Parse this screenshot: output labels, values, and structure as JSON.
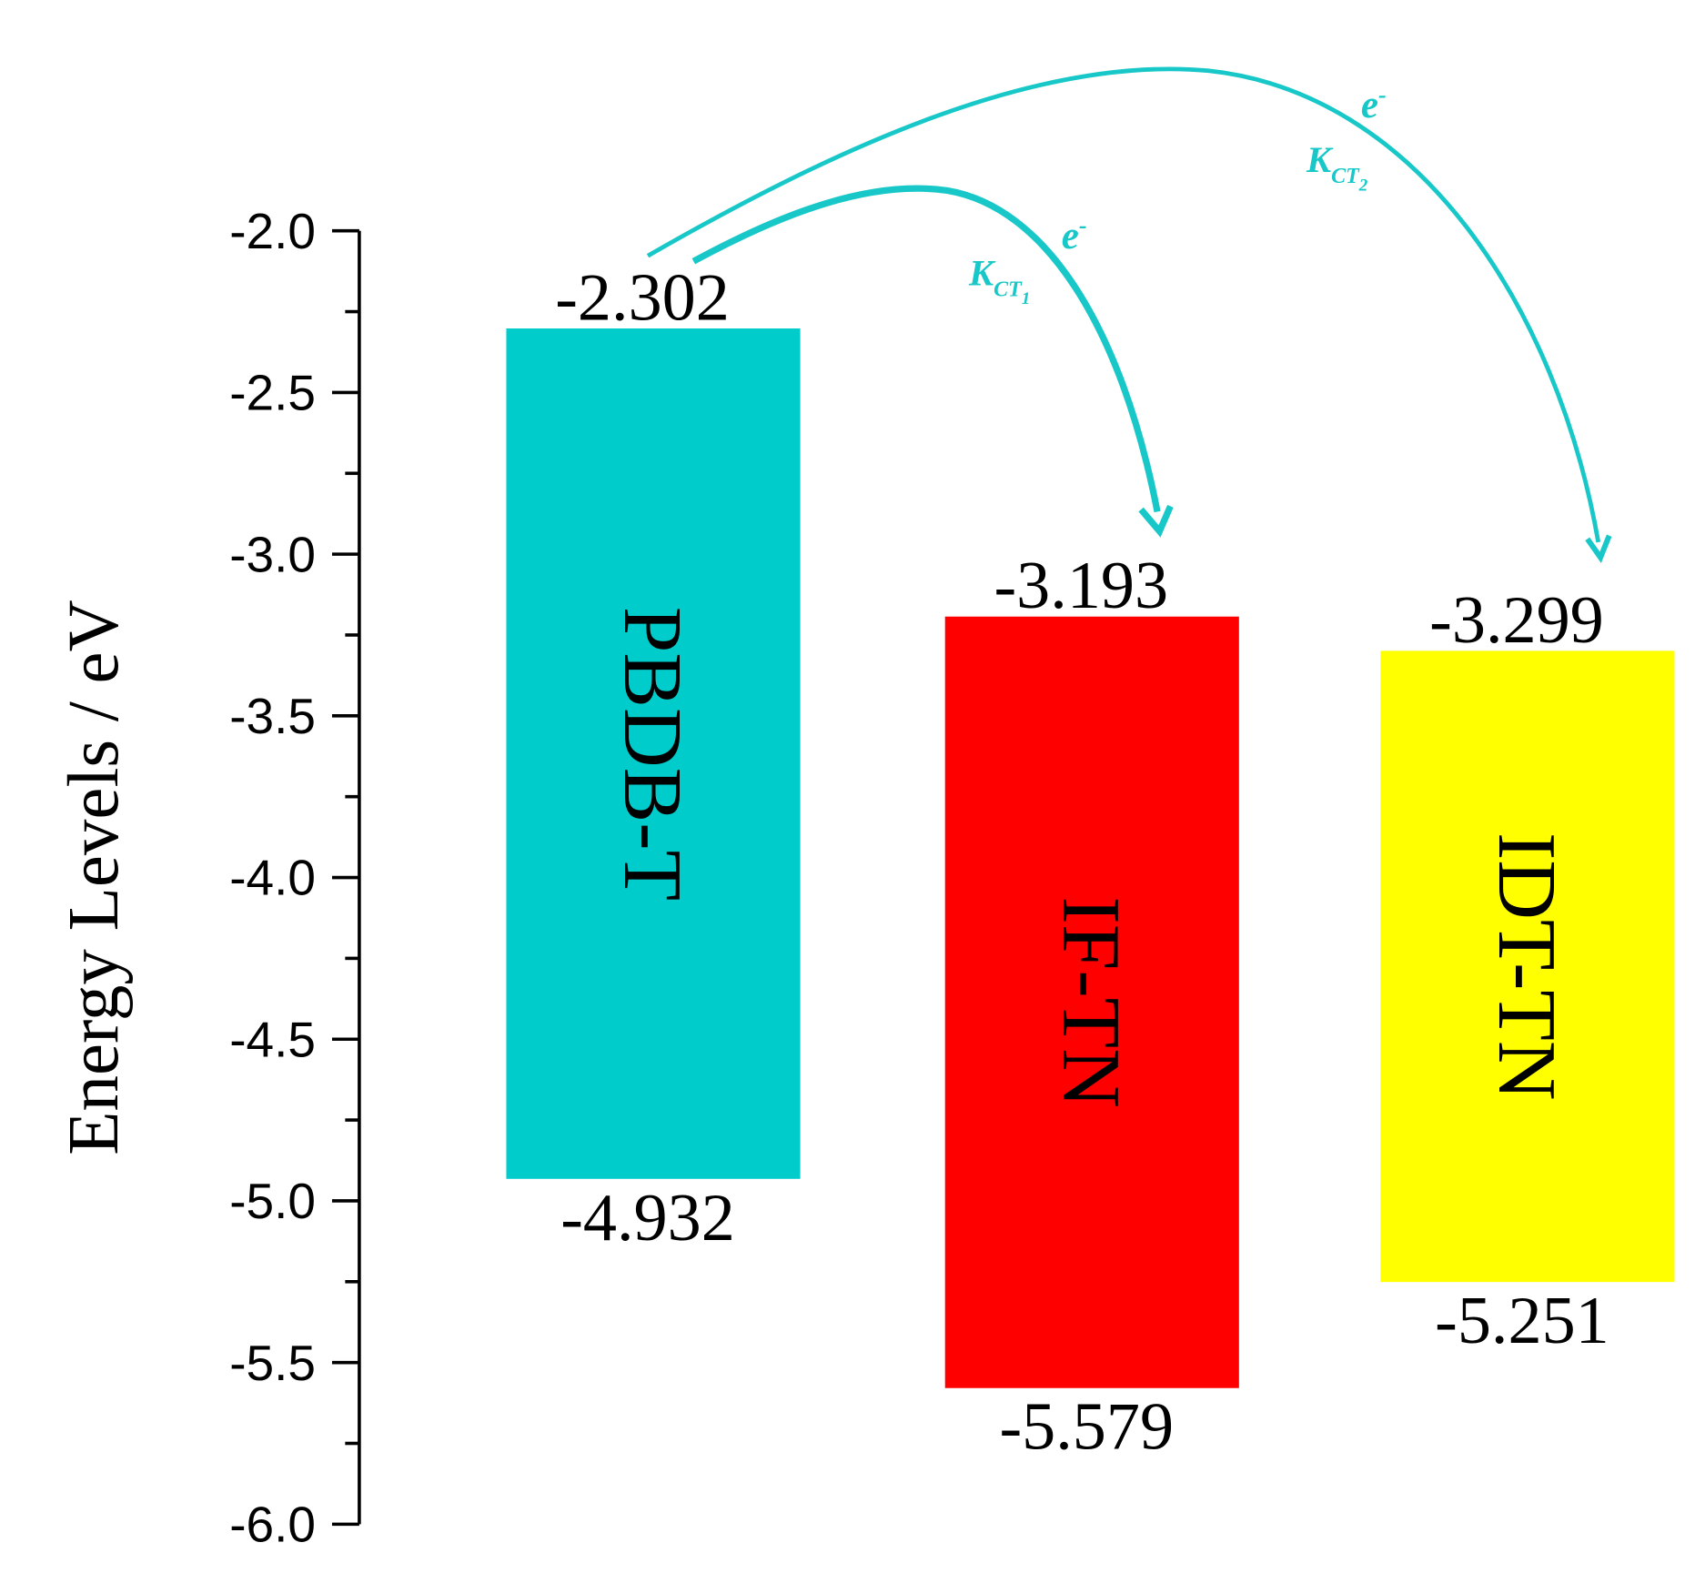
{
  "chart_data": {
    "type": "energy-level",
    "y_label": "Energy Levels / eV",
    "categories": [
      "PBDB-T",
      "IF-TN",
      "IDT-TN"
    ],
    "lumo": [
      -2.302,
      -3.193,
      -3.299
    ],
    "homo": [
      -4.932,
      -5.579,
      -5.251
    ],
    "colors": [
      "#00cccc",
      "#ff0000",
      "#ffff00"
    ],
    "ylim": [
      -6,
      -2
    ],
    "yticks": [
      {
        "value": -2,
        "label": "-2.0"
      },
      {
        "value": -2.5,
        "label": "-2.5"
      },
      {
        "value": -3,
        "label": "-3.0"
      },
      {
        "value": -3.5,
        "label": "-3.5"
      },
      {
        "value": -4,
        "label": "-4.0"
      },
      {
        "value": -4.5,
        "label": "-4.5"
      },
      {
        "value": -5,
        "label": "-5.0"
      },
      {
        "value": -5.5,
        "label": "-5.5"
      },
      {
        "value": -6,
        "label": "-6.0"
      }
    ],
    "minor_yticks": [
      -2.25,
      -2.75,
      -3.25,
      -3.75,
      -4.25,
      -4.75,
      -5.25,
      -5.75
    ],
    "annotations": [
      {
        "electron": "e",
        "charge": "-",
        "rate": "K",
        "rate_sub": "CT",
        "rate_index": "1"
      },
      {
        "electron": "e",
        "charge": "-",
        "rate": "K",
        "rate_sub": "CT",
        "rate_index": "2"
      }
    ],
    "annotation_color": "#18c8c8"
  }
}
